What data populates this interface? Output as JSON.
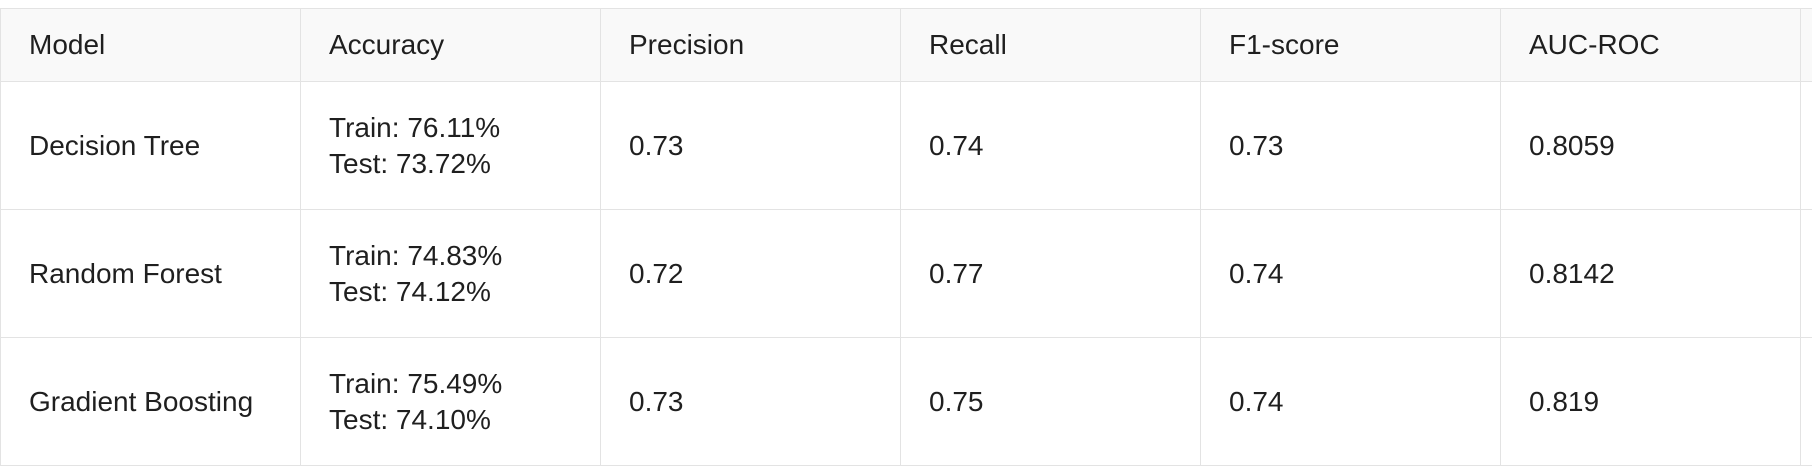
{
  "table": {
    "headers": [
      "Model",
      "Accuracy",
      "Precision",
      "Recall",
      "F1-score",
      "AUC-ROC"
    ],
    "rows": [
      {
        "model": "Decision Tree",
        "accuracy_train": "Train: 76.11%",
        "accuracy_test": "Test: 73.72%",
        "precision": "0.73",
        "recall": "0.74",
        "f1": "0.73",
        "auc": "0.8059"
      },
      {
        "model": "Random Forest",
        "accuracy_train": "Train: 74.83%",
        "accuracy_test": "Test: 74.12%",
        "precision": "0.72",
        "recall": "0.77",
        "f1": "0.74",
        "auc": "0.8142"
      },
      {
        "model": "Gradient Boosting",
        "accuracy_train": "Train: 75.49%",
        "accuracy_test": "Test: 74.10%",
        "precision": "0.73",
        "recall": "0.75",
        "f1": "0.74",
        "auc": "0.819"
      }
    ]
  }
}
